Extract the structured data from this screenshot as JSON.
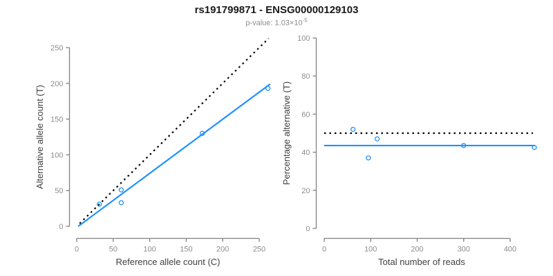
{
  "header": {
    "title": "rs191799871 - ENSG00000129103",
    "subtitle_main": "p-value: 1.03×10",
    "subtitle_exponent": "-5"
  },
  "colors": {
    "accent_blue": "#1E90FF",
    "identity_black": "#000000",
    "axis_line": "#808080",
    "tick_label": "#8c8c8c",
    "axis_label": "#404040",
    "title": "#1a1a1a",
    "subtitle": "#8c8c8c",
    "background": "#ffffff"
  },
  "chart_data": [
    {
      "name": "allele-counts-plot",
      "type": "scatter",
      "xlabel": "Reference allele count (C)",
      "ylabel": "Alternative allele count (T)",
      "xlim": [
        0,
        265
      ],
      "ylim": [
        0,
        263
      ],
      "xticks": [
        0,
        50,
        100,
        150,
        200,
        250
      ],
      "yticks": [
        0,
        50,
        100,
        150,
        200,
        250
      ],
      "grid": false,
      "legend": false,
      "points": [
        [
          31,
          31
        ],
        [
          61,
          51
        ],
        [
          61,
          33
        ],
        [
          172,
          130
        ],
        [
          262,
          193
        ]
      ],
      "lines": [
        {
          "name": "identity-line",
          "style": "dotted",
          "color": "#000000",
          "from": [
            4,
            4
          ],
          "to": [
            263,
            263
          ]
        },
        {
          "name": "fit-line",
          "style": "solid",
          "color": "#1E90FF",
          "from": [
            2,
            0
          ],
          "to": [
            265,
            199
          ]
        }
      ]
    },
    {
      "name": "percentage-alternative-plot",
      "type": "scatter",
      "xlabel": "Total number of reads",
      "ylabel": "Percentage alternative (T)",
      "xlim": [
        0,
        455
      ],
      "ylim": [
        0,
        100
      ],
      "xticks": [
        0,
        100,
        200,
        300,
        400
      ],
      "yticks": [
        0,
        20,
        40,
        60,
        80,
        100
      ],
      "grid": false,
      "legend": false,
      "points": [
        [
          62,
          52
        ],
        [
          114,
          47
        ],
        [
          95,
          37
        ],
        [
          300,
          43.5
        ],
        [
          452,
          42.5
        ]
      ],
      "lines": [
        {
          "name": "expected-50pct-line",
          "style": "dotted",
          "color": "#000000",
          "from": [
            0,
            50
          ],
          "to": [
            449,
            50
          ]
        },
        {
          "name": "fit-line",
          "style": "solid",
          "color": "#1E90FF",
          "from": [
            0,
            43.5
          ],
          "to": [
            453,
            43.5
          ]
        }
      ]
    }
  ]
}
